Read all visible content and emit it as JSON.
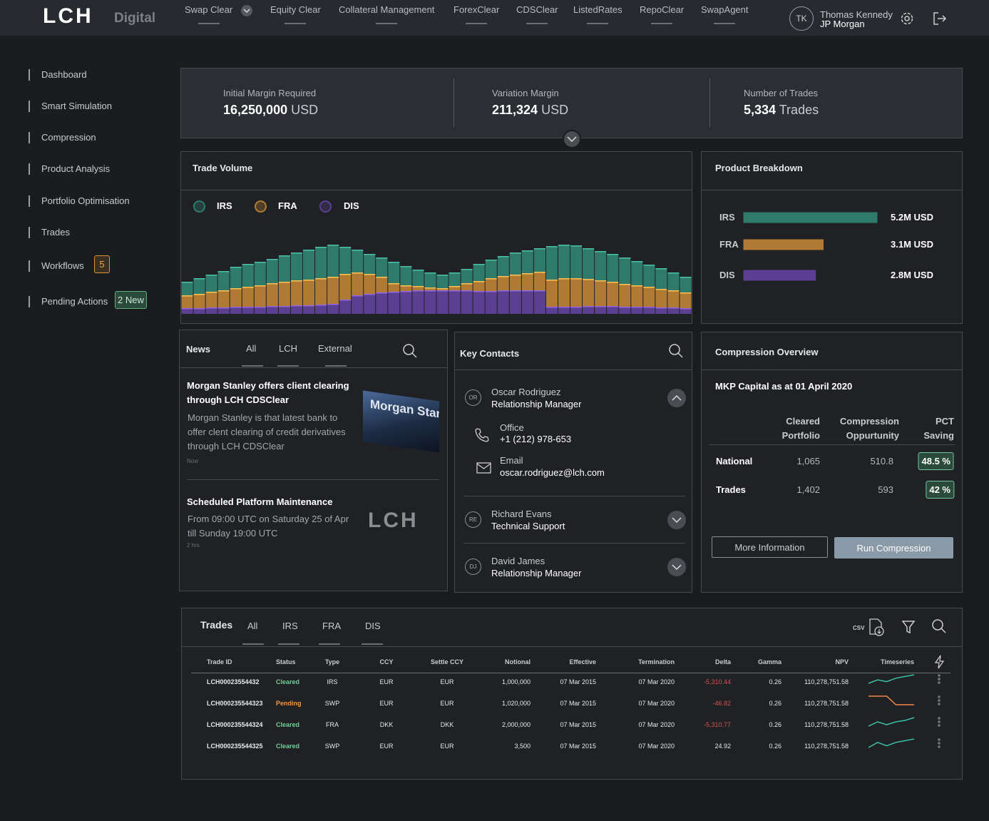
{
  "nav": {
    "logo": "LCH",
    "logo_sub": "Digital",
    "items": [
      "Swap Clear",
      "Equity Clear",
      "Collateral Management",
      "ForexClear",
      "CDSClear",
      "ListedRates",
      "RepoClear",
      "SwapAgent"
    ]
  },
  "user": {
    "initials": "TK",
    "name": "Thomas Kennedy",
    "org": "JP Morgan"
  },
  "sidebar": [
    {
      "label": "Dashboard"
    },
    {
      "label": "Smart Simulation"
    },
    {
      "label": "Compression"
    },
    {
      "label": "Product Analysis"
    },
    {
      "label": "Portfolio Optimisation"
    },
    {
      "label": "Trades"
    },
    {
      "label": "Workflows",
      "badge": "5"
    },
    {
      "label": "Pending Actions",
      "badge": "2 New"
    }
  ],
  "summary": [
    {
      "label": "Initial Margin Required",
      "value": "16,250,000",
      "unit": "USD"
    },
    {
      "label": "Variation Margin",
      "value": "211,324",
      "unit": "USD"
    },
    {
      "label": "Number of Trades",
      "value": "5,334",
      "unit": "Trades"
    }
  ],
  "chart_data": [
    {
      "type": "stacked-bar",
      "title": "Trade Volume",
      "ylim": [
        0,
        100
      ],
      "categories": [
        null,
        null,
        null,
        null,
        null,
        null,
        null,
        null,
        null,
        null,
        null,
        null,
        null,
        null,
        null,
        null,
        null,
        null,
        null,
        null,
        null,
        null,
        null,
        null,
        null,
        null,
        null,
        null,
        null,
        null,
        null,
        null,
        null,
        null,
        null,
        null,
        null,
        null,
        null,
        null,
        null,
        null
      ],
      "series": [
        {
          "name": "IRS",
          "color": "#2f7a6b",
          "values": [
            19,
            22,
            24,
            27,
            30,
            32,
            33,
            34,
            37,
            39,
            42,
            44,
            45,
            38,
            32,
            28,
            27,
            30,
            27,
            23,
            21,
            19,
            19,
            20,
            24,
            26,
            28,
            31,
            32,
            33,
            47,
            47,
            46,
            43,
            41,
            39,
            37,
            34,
            31,
            29,
            25,
            22
          ]
        },
        {
          "name": "FRA",
          "color": "#b07a34",
          "values": [
            18,
            20,
            22,
            24,
            26,
            28,
            30,
            32,
            34,
            35,
            36,
            37,
            38,
            36,
            32,
            28,
            22,
            12,
            8,
            6,
            4,
            3,
            6,
            10,
            14,
            18,
            20,
            22,
            24,
            26,
            38,
            40,
            40,
            38,
            36,
            34,
            32,
            30,
            28,
            26,
            24,
            22
          ]
        },
        {
          "name": "DIS",
          "color": "#5b3f91",
          "values": [
            8,
            8,
            9,
            9,
            10,
            10,
            10,
            11,
            11,
            12,
            12,
            13,
            14,
            20,
            26,
            28,
            30,
            31,
            32,
            33,
            33,
            33,
            33,
            33,
            32,
            32,
            33,
            33,
            33,
            33,
            10,
            10,
            10,
            11,
            11,
            11,
            10,
            10,
            10,
            9,
            9,
            8
          ]
        }
      ]
    },
    {
      "type": "hbar",
      "title": "Product Breakdown",
      "xlim": [
        0,
        5.2
      ],
      "categories": [
        "IRS",
        "FRA",
        "DIS"
      ],
      "values": [
        5.2,
        3.1,
        2.8
      ],
      "value_labels": [
        "5.2M USD",
        "3.1M USD",
        "2.8M USD"
      ],
      "colors": [
        "#2f7a6b",
        "#b07a34",
        "#5b3f91"
      ]
    }
  ],
  "news": {
    "title": "News",
    "tabs": [
      "All",
      "LCH",
      "External"
    ],
    "items": [
      {
        "headline": "Morgan Stanley offers client clearing through LCH CDSClear",
        "body": "Morgan Stanley is that latest bank to offer clent clearing of credit derivatives through LCH CDSClear",
        "time": "Now",
        "image_text": "Morgan Stanley"
      },
      {
        "headline": "Scheduled Platform Maintenance",
        "body": "From 09:00 UTC on Saturday 25 of Apr till Sunday 19:00 UTC",
        "time": "2 hrs",
        "image_text": "LCH"
      }
    ]
  },
  "contacts": {
    "title": "Key Contacts",
    "people": [
      {
        "initials": "OR",
        "name": "Oscar Rodriguez",
        "role": "Relationship Manager",
        "office_label": "Office",
        "office": "+1 (212) 978-653",
        "email_label": "Email",
        "email": "oscar.rodriguez@lch.com"
      },
      {
        "initials": "RE",
        "name": "Richard Evans",
        "role": "Technical Support"
      },
      {
        "initials": "DJ",
        "name": "David James",
        "role": "Relationship Manager"
      }
    ]
  },
  "compression": {
    "title": "Compression Overview",
    "subtitle": "MKP Capital as at 01 April 2020",
    "headers": [
      "Cleared Portfolio",
      "Compression Oppurtunity",
      "PCT Saving"
    ],
    "rows": [
      {
        "label": "National",
        "cells": [
          "1,065",
          "510.8",
          "48.5 %"
        ]
      },
      {
        "label": "Trades",
        "cells": [
          "1,402",
          "593",
          "42 %"
        ]
      }
    ],
    "buttons": [
      "More Information",
      "Run Compression"
    ]
  },
  "trades": {
    "title": "Trades",
    "tabs": [
      "All",
      "IRS",
      "FRA",
      "DIS"
    ],
    "csv": "CSV",
    "columns": [
      "Trade ID",
      "Status",
      "Type",
      "CCY",
      "Settle CCY",
      "Notional",
      "Effective",
      "Termination",
      "Delta",
      "Gamma",
      "NPV",
      "Timeseries"
    ],
    "rows": [
      {
        "cells": [
          "LCH00023554432",
          "Cleared",
          "IRS",
          "EUR",
          "EUR",
          "1,000,000",
          "07 Mar 2015",
          "07 Mar 2020",
          "-5,310.44",
          "0.26",
          "110,278,751.58"
        ],
        "timeseries": {
          "color": "#3cc0a8",
          "values": [
            3,
            5,
            4,
            6,
            7,
            8
          ]
        }
      },
      {
        "cells": [
          "LCH000235544323",
          "Pending",
          "SWP",
          "EUR",
          "EUR",
          "1,020,000",
          "07 Mar 2015",
          "07 Mar 2020",
          "-46.82",
          "0.26",
          "110,278,751.58"
        ],
        "timeseries": {
          "color": "#f0884a",
          "values": [
            7,
            7,
            7,
            3,
            3,
            3
          ]
        }
      },
      {
        "cells": [
          "LCH000235544324",
          "Cleared",
          "FRA",
          "DKK",
          "DKK",
          "2,000,000",
          "07 Mar 2015",
          "07 Mar 2020",
          "-5,310.77",
          "0.26",
          "110,278,751.58"
        ],
        "timeseries": {
          "color": "#3cc0a8",
          "values": [
            3,
            6,
            4,
            6,
            7,
            9
          ]
        }
      },
      {
        "cells": [
          "LCH000235544325",
          "Cleared",
          "SWP",
          "EUR",
          "EUR",
          "3,500",
          "07 Mar 2015",
          "07 Mar 2020",
          "24.92",
          "0.26",
          "110,278,751.58"
        ],
        "timeseries": {
          "color": "#3cc0a8",
          "values": [
            3,
            6,
            4,
            6,
            7,
            8
          ]
        }
      }
    ]
  }
}
